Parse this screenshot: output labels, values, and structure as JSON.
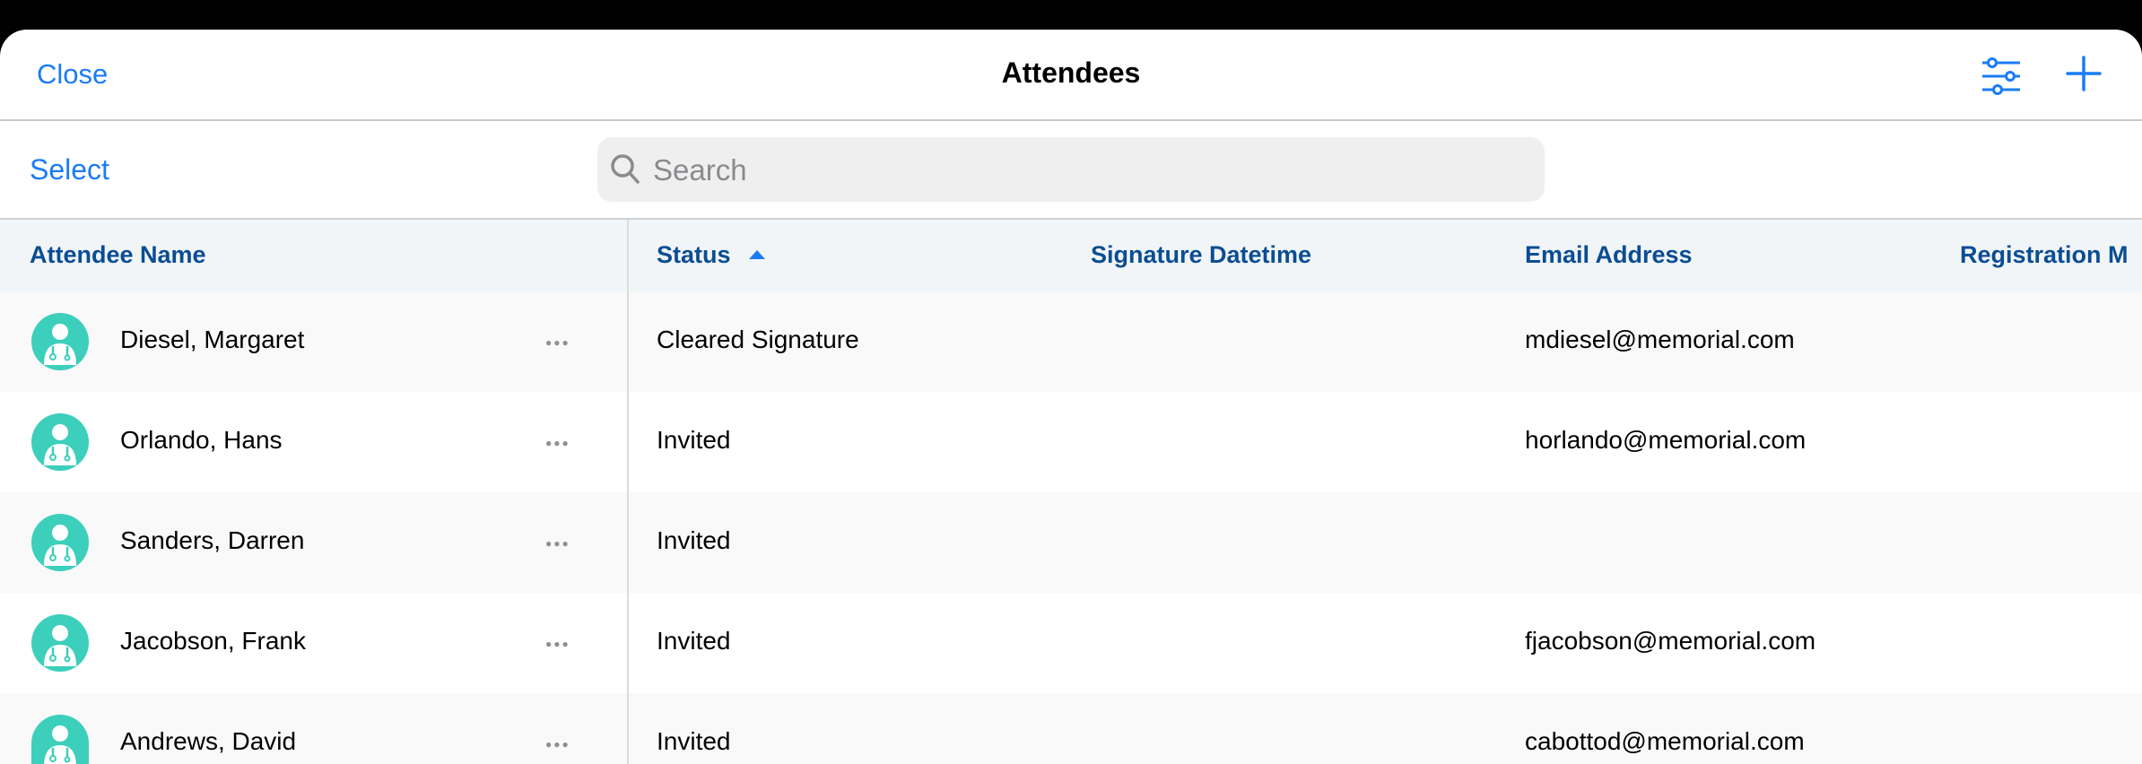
{
  "nav": {
    "close_label": "Close",
    "title": "Attendees",
    "filter_icon": "sliders-icon",
    "add_icon": "plus-icon"
  },
  "toolbar": {
    "select_label": "Select",
    "search_placeholder": "Search",
    "search_value": ""
  },
  "colors": {
    "accent": "#1a7cf5",
    "header_text": "#0b4d92",
    "avatar": "#3ccfbb"
  },
  "table": {
    "columns": [
      "Attendee Name",
      "Status",
      "Signature Datetime",
      "Email Address",
      "Registration M"
    ],
    "sort": {
      "column": "Status",
      "direction": "ascending"
    },
    "rows": [
      {
        "name": "Diesel, Margaret",
        "status": "Cleared Signature",
        "signature": "",
        "email": "mdiesel@memorial.com"
      },
      {
        "name": "Orlando, Hans",
        "status": "Invited",
        "signature": "",
        "email": "horlando@memorial.com"
      },
      {
        "name": "Sanders, Darren",
        "status": "Invited",
        "signature": "",
        "email": ""
      },
      {
        "name": "Jacobson, Frank",
        "status": "Invited",
        "signature": "",
        "email": "fjacobson@memorial.com"
      },
      {
        "name": "Andrews, David",
        "status": "Invited",
        "signature": "",
        "email": "cabottod@memorial.com"
      }
    ]
  }
}
